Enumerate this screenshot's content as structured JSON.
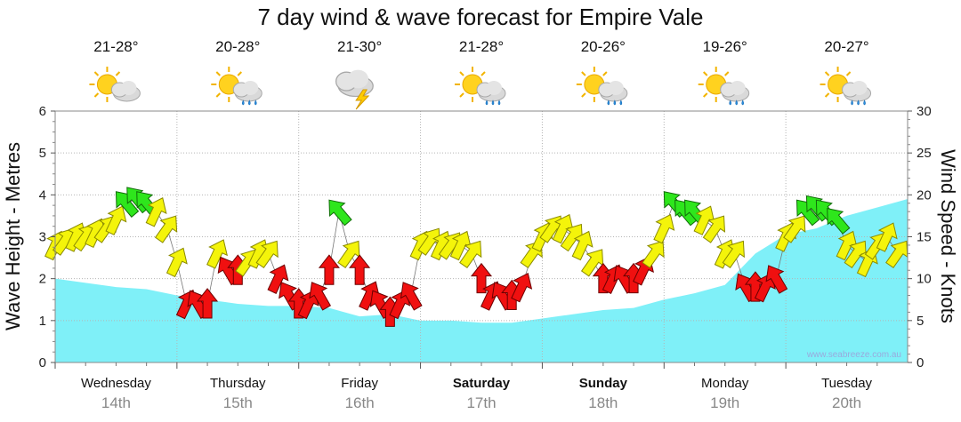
{
  "chart_data": {
    "type": "area",
    "title": "7 day wind & wave forecast for Empire Vale",
    "ylabel_left": "Wave Height - Metres",
    "ylabel_right": "Wind Speed - Knots",
    "ylim_left": [
      0,
      6
    ],
    "ylim_right": [
      0,
      30
    ],
    "yticks_left": [
      "0",
      "1",
      "2",
      "3",
      "4",
      "5",
      "6"
    ],
    "yticks_right": [
      "0",
      "5",
      "10",
      "15",
      "20",
      "25",
      "30"
    ],
    "credit": "www.seabreeze.com.au",
    "days": [
      {
        "name": "Wednesday",
        "date": "14th",
        "temp": "21-28°",
        "icon": "sun-cloud-icon",
        "bold": false
      },
      {
        "name": "Thursday",
        "date": "15th",
        "temp": "20-28°",
        "icon": "sun-cloud-rain-icon",
        "bold": false
      },
      {
        "name": "Friday",
        "date": "16th",
        "temp": "21-30°",
        "icon": "storm-cloud-icon",
        "bold": false
      },
      {
        "name": "Saturday",
        "date": "17th",
        "temp": "21-28°",
        "icon": "sun-cloud-rain-icon",
        "bold": true
      },
      {
        "name": "Sunday",
        "date": "18th",
        "temp": "20-26°",
        "icon": "sun-cloud-rain-icon",
        "bold": true
      },
      {
        "name": "Monday",
        "date": "19th",
        "temp": "19-26°",
        "icon": "sun-cloud-rain-icon",
        "bold": false
      },
      {
        "name": "Tuesday",
        "date": "20th",
        "temp": "20-27°",
        "icon": "sun-cloud-rain-icon",
        "bold": false
      }
    ],
    "wave_series": {
      "name": "Wave Height",
      "color": "#7ff0f8",
      "t": [
        0,
        0.25,
        0.5,
        0.75,
        1,
        1.25,
        1.5,
        1.75,
        2,
        2.25,
        2.5,
        2.75,
        3,
        3.25,
        3.5,
        3.75,
        4,
        4.25,
        4.5,
        4.75,
        5,
        5.25,
        5.5,
        5.75,
        6,
        6.25,
        6.5,
        6.75,
        7
      ],
      "values": [
        2.0,
        1.9,
        1.8,
        1.75,
        1.6,
        1.5,
        1.4,
        1.35,
        1.35,
        1.3,
        1.1,
        1.15,
        1.0,
        1.0,
        0.95,
        0.95,
        1.05,
        1.15,
        1.25,
        1.3,
        1.5,
        1.65,
        1.85,
        2.6,
        3.05,
        3.2,
        3.5,
        3.7,
        3.9
      ]
    },
    "wind_series": {
      "name": "Wind Speed",
      "t": [
        0,
        0.08,
        0.17,
        0.25,
        0.33,
        0.42,
        0.5,
        0.58,
        0.67,
        0.75,
        0.83,
        0.92,
        1.0,
        1.08,
        1.17,
        1.25,
        1.33,
        1.42,
        1.5,
        1.58,
        1.67,
        1.75,
        1.83,
        1.92,
        2.0,
        2.08,
        2.17,
        2.25,
        2.33,
        2.42,
        2.5,
        2.58,
        2.67,
        2.75,
        2.83,
        2.92,
        3.0,
        3.08,
        3.17,
        3.25,
        3.33,
        3.42,
        3.5,
        3.58,
        3.67,
        3.75,
        3.83,
        3.92,
        4.0,
        4.08,
        4.17,
        4.25,
        4.33,
        4.42,
        4.5,
        4.58,
        4.67,
        4.75,
        4.83,
        4.92,
        5.0,
        5.08,
        5.17,
        5.25,
        5.33,
        5.42,
        5.5,
        5.58,
        5.67,
        5.75,
        5.83,
        5.92,
        6.0,
        6.08,
        6.17,
        6.25,
        6.33,
        6.42,
        6.5,
        6.58,
        6.67,
        6.75,
        6.83,
        6.92
      ],
      "values": [
        14,
        14.5,
        15,
        15,
        15.5,
        16,
        17,
        19,
        19.5,
        19,
        18,
        16,
        12,
        7,
        7,
        7,
        13,
        11,
        11,
        12,
        13,
        13,
        10,
        8,
        7,
        7,
        8,
        11,
        18,
        13,
        11,
        8,
        7,
        6,
        7,
        8,
        14,
        14.5,
        14,
        14,
        14,
        13,
        10,
        8,
        8,
        8,
        9,
        13,
        15,
        16,
        16,
        15,
        14,
        12,
        10,
        10,
        10,
        10,
        11,
        13,
        16,
        19,
        18,
        18,
        17,
        16,
        13,
        13,
        9,
        9,
        9,
        10,
        15,
        16,
        18,
        18.5,
        18,
        17,
        14,
        13,
        12,
        14,
        15,
        13
      ],
      "colors": [
        "y",
        "y",
        "y",
        "y",
        "y",
        "y",
        "y",
        "g",
        "g",
        "g",
        "y",
        "y",
        "y",
        "r",
        "r",
        "r",
        "y",
        "r",
        "r",
        "y",
        "y",
        "y",
        "r",
        "r",
        "r",
        "r",
        "r",
        "r",
        "g",
        "y",
        "r",
        "r",
        "r",
        "r",
        "r",
        "r",
        "y",
        "y",
        "y",
        "y",
        "y",
        "y",
        "r",
        "r",
        "r",
        "r",
        "r",
        "y",
        "y",
        "y",
        "y",
        "y",
        "y",
        "y",
        "r",
        "r",
        "r",
        "r",
        "r",
        "y",
        "y",
        "g",
        "g",
        "g",
        "y",
        "y",
        "y",
        "y",
        "r",
        "r",
        "r",
        "r",
        "y",
        "y",
        "g",
        "g",
        "g",
        "g",
        "y",
        "y",
        "y",
        "y",
        "y",
        "y"
      ]
    }
  }
}
